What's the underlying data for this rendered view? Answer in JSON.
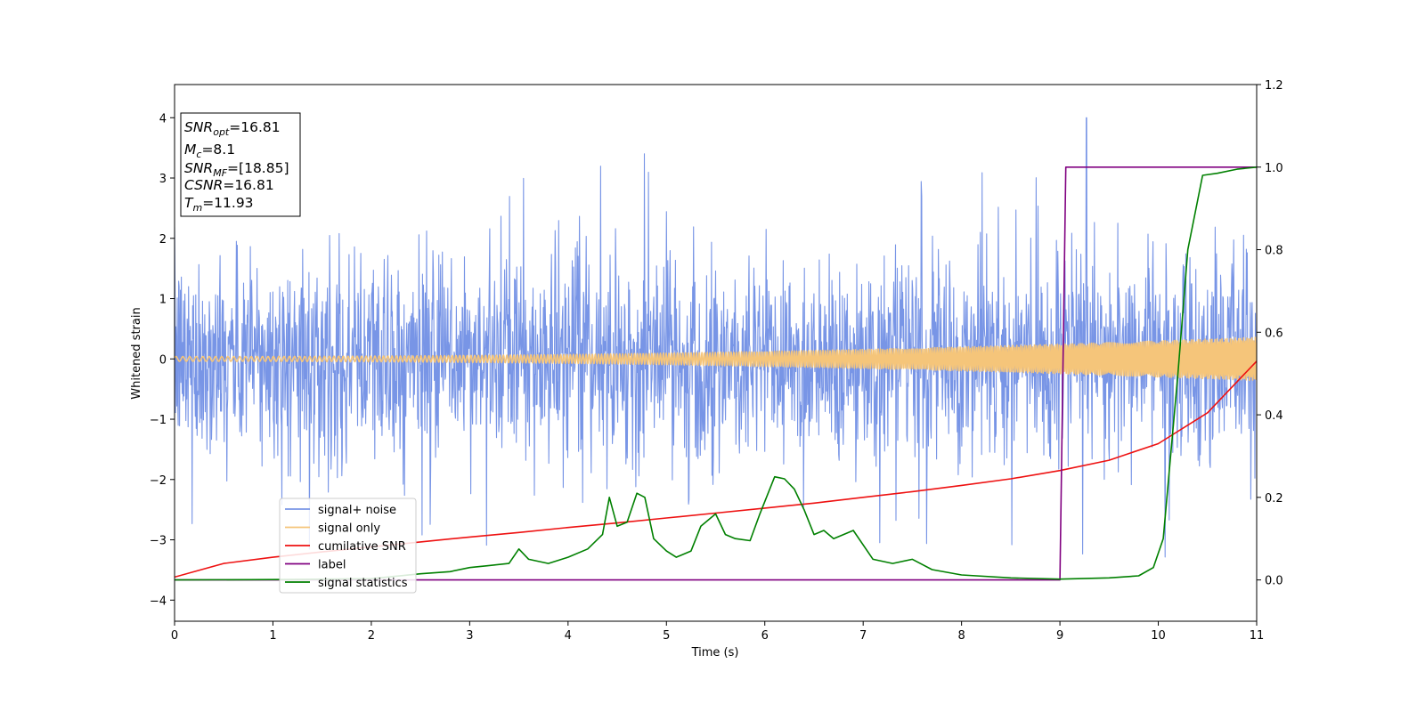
{
  "chart_data": {
    "type": "line",
    "xlabel": "Time (s)",
    "ylabel": "Whitened strain",
    "xlim": [
      0,
      11
    ],
    "ylim_left": [
      -4.35,
      4.55
    ],
    "ylim_right": [
      -0.1,
      1.2
    ],
    "xticks": [
      "0",
      "1",
      "2",
      "3",
      "4",
      "5",
      "6",
      "7",
      "8",
      "9",
      "10",
      "11"
    ],
    "yticks_left": [
      "−4",
      "−3",
      "−2",
      "−1",
      "0",
      "1",
      "2",
      "3",
      "4"
    ],
    "yticks_right": [
      "0.0",
      "0.2",
      "0.4",
      "0.6",
      "0.8",
      "1.0",
      "1.2"
    ],
    "grid": false,
    "legend_position": "lower-left",
    "annotation": [
      {
        "var": "SNR",
        "sub": "opt",
        "value": "=16.81"
      },
      {
        "var": "M",
        "sub": "c",
        "value": "=8.1"
      },
      {
        "var": "SNR",
        "sub": "MF",
        "value": "=[18.85]"
      },
      {
        "var": "CSNR",
        "sub": "",
        "value": "=16.81"
      },
      {
        "var": "T",
        "sub": "m",
        "value": "=11.93"
      }
    ],
    "series": [
      {
        "name": "signal+ noise",
        "axis": "left",
        "color": "#7895e6",
        "kind": "noise",
        "sigma": 1.05,
        "peak_value": 4.0,
        "peak_x": 9.27
      },
      {
        "name": "signal only",
        "axis": "left",
        "color": "#f5c57a",
        "kind": "chirp",
        "amplitude_start": 0.04,
        "amplitude_end": 0.36
      },
      {
        "name": "cumilative SNR",
        "axis": "right",
        "color": "#ee1111",
        "x": [
          0,
          0.5,
          1,
          1.5,
          2,
          2.5,
          3,
          3.5,
          4,
          4.5,
          5,
          5.5,
          6,
          6.5,
          7,
          7.5,
          8,
          8.5,
          9,
          9.5,
          10,
          10.5,
          11
        ],
        "y": [
          0.007,
          0.04,
          0.055,
          0.068,
          0.08,
          0.092,
          0.104,
          0.115,
          0.127,
          0.138,
          0.15,
          0.162,
          0.174,
          0.186,
          0.2,
          0.214,
          0.229,
          0.245,
          0.265,
          0.29,
          0.33,
          0.405,
          0.53
        ]
      },
      {
        "name": "label",
        "axis": "right",
        "color": "#800080",
        "x": [
          0,
          9.0,
          9.06,
          11
        ],
        "y": [
          0,
          0,
          1,
          1
        ]
      },
      {
        "name": "signal statistics",
        "axis": "right",
        "color": "#008000",
        "x": [
          0,
          1,
          2,
          2.5,
          2.8,
          3.0,
          3.2,
          3.4,
          3.5,
          3.6,
          3.8,
          4.0,
          4.2,
          4.35,
          4.42,
          4.5,
          4.6,
          4.7,
          4.78,
          4.87,
          5.0,
          5.1,
          5.25,
          5.35,
          5.5,
          5.6,
          5.7,
          5.85,
          5.95,
          6.1,
          6.2,
          6.3,
          6.4,
          6.5,
          6.6,
          6.7,
          6.8,
          6.9,
          7.1,
          7.3,
          7.5,
          7.7,
          8.0,
          8.5,
          9.0,
          9.5,
          9.8,
          9.95,
          10.05,
          10.2,
          10.3,
          10.45,
          10.6,
          10.8,
          11
        ],
        "y": [
          0.0,
          0.001,
          0.003,
          0.015,
          0.02,
          0.03,
          0.035,
          0.04,
          0.075,
          0.05,
          0.04,
          0.055,
          0.075,
          0.11,
          0.2,
          0.13,
          0.14,
          0.21,
          0.2,
          0.1,
          0.07,
          0.055,
          0.07,
          0.13,
          0.16,
          0.11,
          0.1,
          0.095,
          0.16,
          0.25,
          0.245,
          0.22,
          0.17,
          0.11,
          0.12,
          0.1,
          0.11,
          0.12,
          0.05,
          0.04,
          0.05,
          0.025,
          0.012,
          0.005,
          0.002,
          0.005,
          0.01,
          0.03,
          0.1,
          0.5,
          0.8,
          0.98,
          0.985,
          0.995,
          1.0
        ]
      }
    ]
  }
}
